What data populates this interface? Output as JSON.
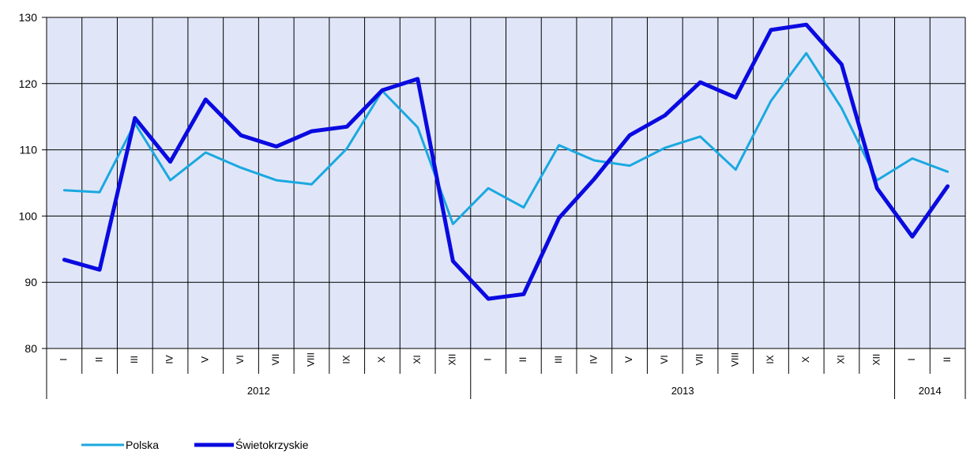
{
  "chart_data": {
    "type": "line",
    "title": "",
    "xlabel": "",
    "ylabel": "",
    "ylim": [
      80,
      130
    ],
    "yticks": [
      80,
      90,
      100,
      110,
      120,
      130
    ],
    "grid": true,
    "plot_background": "#e0e6f8",
    "categories": [
      "I",
      "II",
      "III",
      "IV",
      "V",
      "VI",
      "VII",
      "VIII",
      "IX",
      "X",
      "XI",
      "XII",
      "I",
      "II",
      "III",
      "IV",
      "V",
      "VI",
      "VII",
      "VIII",
      "IX",
      "X",
      "XI",
      "XII",
      "I",
      "II"
    ],
    "years": [
      {
        "label": "2012",
        "start": 0,
        "count": 12
      },
      {
        "label": "2013",
        "start": 12,
        "count": 12
      },
      {
        "label": "2014",
        "start": 24,
        "count": 2
      }
    ],
    "series": [
      {
        "name": "Polska",
        "color": "#1aa8e0",
        "width": 3,
        "values": [
          103.9,
          103.6,
          114.0,
          105.4,
          109.6,
          107.3,
          105.4,
          104.8,
          110.2,
          118.9,
          113.4,
          98.8,
          104.2,
          101.3,
          110.7,
          108.4,
          107.6,
          110.3,
          112.0,
          107.0,
          117.4,
          124.6,
          116.3,
          105.4,
          108.7,
          106.7
        ]
      },
      {
        "name": "Świetokrzyskie",
        "color": "#0a0ae0",
        "width": 5,
        "values": [
          93.4,
          91.9,
          114.8,
          108.2,
          117.6,
          112.2,
          110.5,
          112.8,
          113.5,
          119.0,
          120.7,
          93.2,
          87.5,
          88.2,
          99.7,
          105.6,
          112.2,
          115.2,
          120.2,
          117.9,
          128.1,
          128.9,
          122.9,
          104.2,
          96.9,
          104.5
        ]
      }
    ],
    "legend_position": "bottom-left"
  }
}
